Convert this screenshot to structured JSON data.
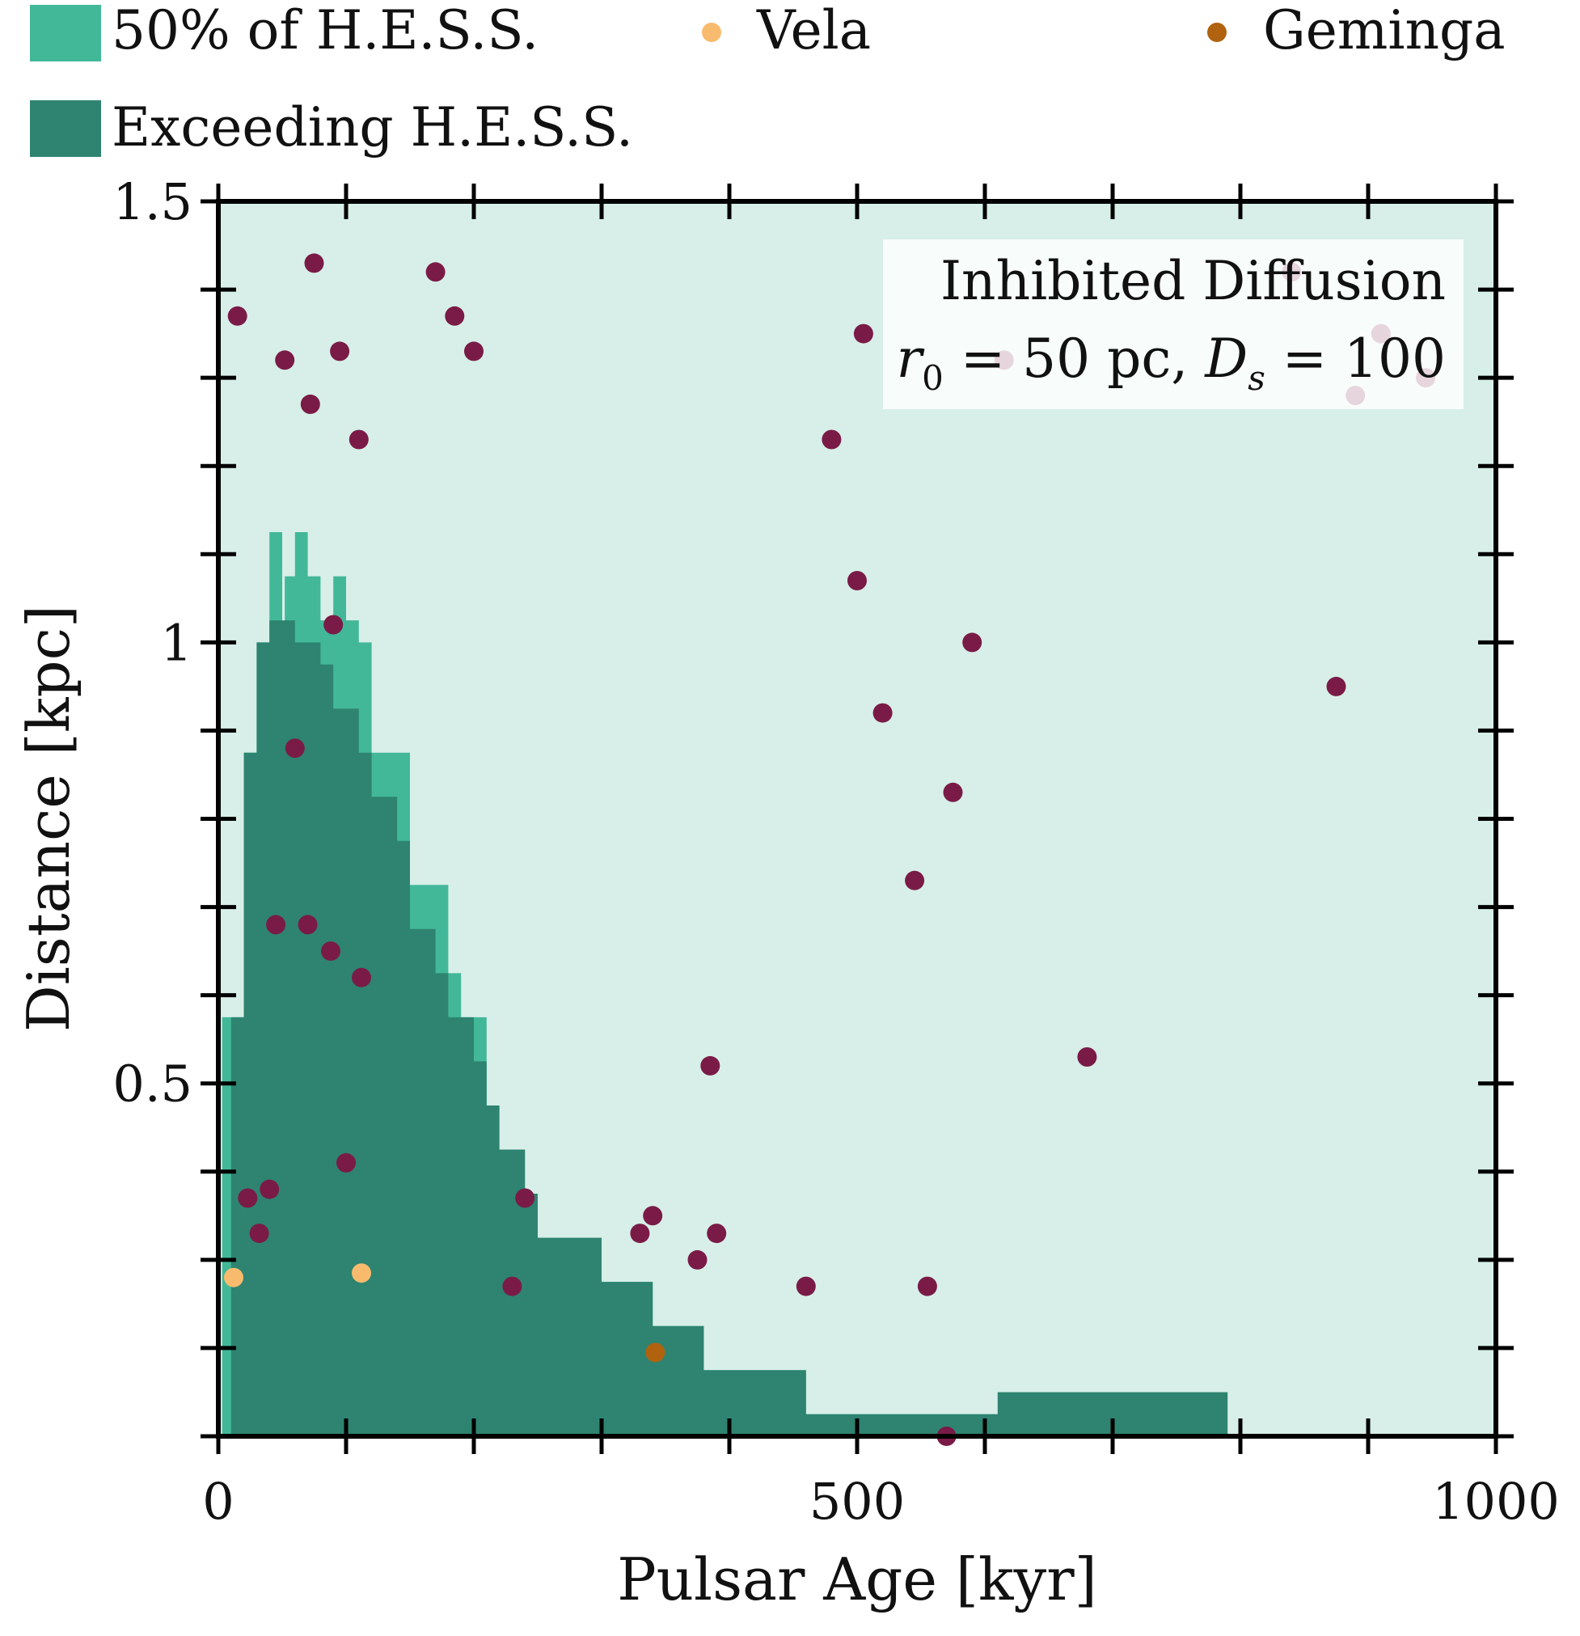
{
  "chart_data": {
    "type": "scatter",
    "title": "",
    "xlabel": "Pulsar Age [kyr]",
    "ylabel": "Distance [kpc]",
    "xlim": [
      0,
      1000
    ],
    "ylim": [
      0.1,
      1.5
    ],
    "xticks": [
      0,
      500,
      1000
    ],
    "xtick_labels": [
      "0",
      "500",
      "1000"
    ],
    "yticks": [
      0.5,
      1,
      1.5
    ],
    "ytick_labels": [
      "0.5",
      "1",
      "1.5"
    ],
    "grid": false,
    "colors": {
      "background_region": "#d7efe8",
      "half_hess": "#42b899",
      "exceeding_hess": "#2e8470",
      "pulsars": "#7a1b47",
      "vela": "#f8bb6e",
      "geminga": "#b1620f"
    },
    "annotation": {
      "line1": "Inhibited Diffusion",
      "r_sym": "r",
      "r_sub": "0",
      "r_value": " = 50 pc, ",
      "d_sym": "D",
      "d_sub": "s",
      "d_value": " = 100"
    },
    "legend": [
      {
        "label": "50% of H.E.S.S.",
        "kind": "patch",
        "color": "#42b899"
      },
      {
        "label": "Vela",
        "kind": "marker",
        "color": "#f8bb6e"
      },
      {
        "label": "Geminga",
        "kind": "marker",
        "color": "#b1620f"
      },
      {
        "label": "Exceeding H.E.S.S.",
        "kind": "patch",
        "color": "#2e8470"
      }
    ],
    "regions": {
      "half_hess_boundary": [
        [
          0,
          0.1
        ],
        [
          3,
          0.1
        ],
        [
          3,
          0.575
        ],
        [
          20,
          0.575
        ],
        [
          20,
          0.875
        ],
        [
          30,
          0.875
        ],
        [
          30,
          1.0
        ],
        [
          40,
          1.0
        ],
        [
          40,
          1.125
        ],
        [
          50,
          1.125
        ],
        [
          50,
          1.0
        ],
        [
          52,
          1.0
        ],
        [
          52,
          1.075
        ],
        [
          60,
          1.075
        ],
        [
          60,
          1.125
        ],
        [
          70,
          1.125
        ],
        [
          70,
          1.075
        ],
        [
          80,
          1.075
        ],
        [
          80,
          1.025
        ],
        [
          90,
          1.025
        ],
        [
          90,
          1.075
        ],
        [
          100,
          1.075
        ],
        [
          100,
          1.025
        ],
        [
          110,
          1.025
        ],
        [
          110,
          1.0
        ],
        [
          120,
          1.0
        ],
        [
          120,
          0.875
        ],
        [
          150,
          0.875
        ],
        [
          150,
          0.725
        ],
        [
          180,
          0.725
        ],
        [
          180,
          0.625
        ],
        [
          190,
          0.625
        ],
        [
          190,
          0.575
        ],
        [
          210,
          0.575
        ],
        [
          210,
          0.475
        ],
        [
          220,
          0.475
        ],
        [
          220,
          0.425
        ],
        [
          240,
          0.425
        ],
        [
          240,
          0.375
        ],
        [
          250,
          0.375
        ],
        [
          250,
          0.325
        ],
        [
          300,
          0.325
        ],
        [
          300,
          0.275
        ],
        [
          340,
          0.275
        ],
        [
          340,
          0.225
        ],
        [
          380,
          0.225
        ],
        [
          380,
          0.175
        ],
        [
          460,
          0.175
        ],
        [
          460,
          0.125
        ],
        [
          610,
          0.125
        ],
        [
          610,
          0.1
        ]
      ],
      "exceeding_hess_boundary": [
        [
          10,
          0.1
        ],
        [
          10,
          0.575
        ],
        [
          20,
          0.575
        ],
        [
          20,
          0.875
        ],
        [
          30,
          0.875
        ],
        [
          30,
          1.0
        ],
        [
          40,
          1.0
        ],
        [
          40,
          1.025
        ],
        [
          60,
          1.025
        ],
        [
          60,
          1.0
        ],
        [
          80,
          1.0
        ],
        [
          80,
          0.975
        ],
        [
          90,
          0.975
        ],
        [
          90,
          0.925
        ],
        [
          110,
          0.925
        ],
        [
          110,
          0.875
        ],
        [
          120,
          0.875
        ],
        [
          120,
          0.825
        ],
        [
          140,
          0.825
        ],
        [
          140,
          0.775
        ],
        [
          150,
          0.775
        ],
        [
          150,
          0.675
        ],
        [
          170,
          0.675
        ],
        [
          170,
          0.625
        ],
        [
          180,
          0.625
        ],
        [
          180,
          0.575
        ],
        [
          200,
          0.575
        ],
        [
          200,
          0.525
        ],
        [
          210,
          0.525
        ],
        [
          210,
          0.475
        ],
        [
          220,
          0.475
        ],
        [
          220,
          0.425
        ],
        [
          240,
          0.425
        ],
        [
          240,
          0.375
        ],
        [
          250,
          0.375
        ],
        [
          250,
          0.325
        ],
        [
          300,
          0.325
        ],
        [
          300,
          0.275
        ],
        [
          340,
          0.275
        ],
        [
          340,
          0.225
        ],
        [
          380,
          0.225
        ],
        [
          380,
          0.175
        ],
        [
          460,
          0.175
        ],
        [
          460,
          0.125
        ],
        [
          610,
          0.125
        ],
        [
          610,
          0.15
        ],
        [
          790,
          0.15
        ],
        [
          790,
          0.1
        ]
      ]
    },
    "series": [
      {
        "name": "Pulsars",
        "kind": "points",
        "x": [
          15,
          23,
          32,
          40,
          45,
          52,
          60,
          70,
          72,
          75,
          88,
          90,
          95,
          100,
          110,
          112,
          170,
          185,
          200,
          230,
          240,
          330,
          340,
          375,
          385,
          390,
          460,
          480,
          500,
          505,
          520,
          545,
          555,
          570,
          575,
          590,
          680,
          615,
          840,
          875,
          890,
          910,
          945
        ],
        "y": [
          1.37,
          0.37,
          0.33,
          0.38,
          0.68,
          1.32,
          0.88,
          0.68,
          1.27,
          1.43,
          0.65,
          1.02,
          1.33,
          0.41,
          1.23,
          0.62,
          1.42,
          1.37,
          1.33,
          0.27,
          0.37,
          0.33,
          0.35,
          0.3,
          0.52,
          0.33,
          0.27,
          1.23,
          1.07,
          1.35,
          0.92,
          0.73,
          0.27,
          0.1,
          0.83,
          1.0,
          0.53,
          1.32,
          1.42,
          0.95,
          1.28,
          1.35,
          1.3
        ]
      },
      {
        "name": "Vela",
        "kind": "points",
        "x": [
          12,
          112
        ],
        "y": [
          0.28,
          0.285
        ]
      },
      {
        "name": "Geminga",
        "kind": "points",
        "x": [
          342
        ],
        "y": [
          0.195
        ]
      }
    ]
  }
}
